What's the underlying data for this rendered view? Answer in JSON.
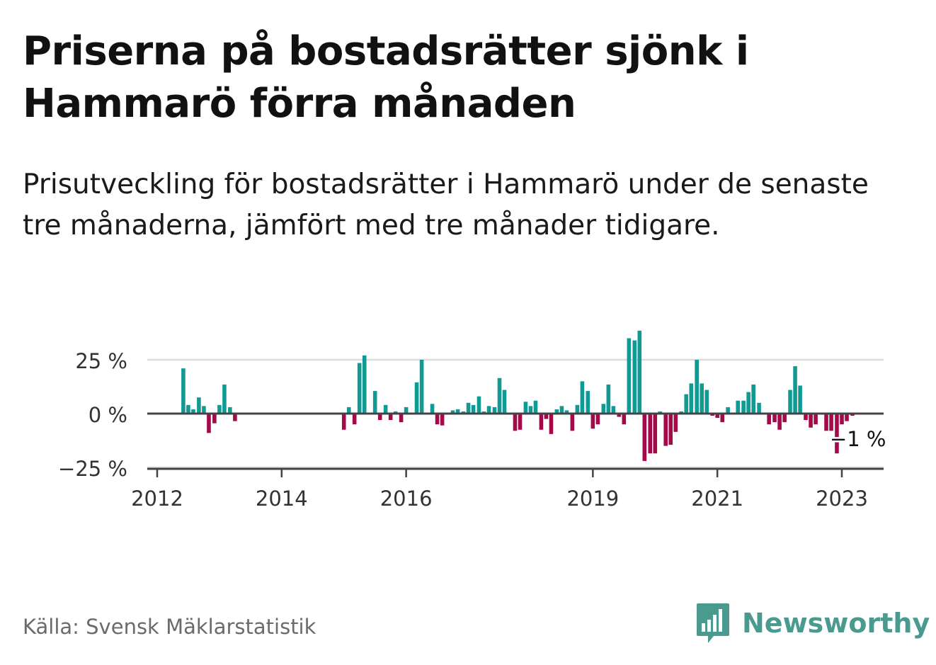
{
  "title": "Priserna på bostadsrätter sjönk i Hammarö förra månaden",
  "subtitle": "Prisutveckling för bostadsrätter i Hammarö under de senaste tre månaderna, jämfört med tre månader tidigare.",
  "source": "Källa: Svensk Mäklarstatistik",
  "brand": "Newsworthy",
  "colors": {
    "positive": "#119a94",
    "negative": "#a40a4a",
    "brand": "#4a9a90"
  },
  "icons": {
    "brand_logo": "bar-chart-icon"
  },
  "chart_data": {
    "type": "bar",
    "ylim": [
      -25,
      40
    ],
    "yticks": [
      {
        "value": 25,
        "label": "25 %"
      },
      {
        "value": 0,
        "label": "0 %"
      },
      {
        "value": -25,
        "label": "−25 %"
      }
    ],
    "xticks": [
      {
        "value": 2012.0,
        "label": "2012"
      },
      {
        "value": 2014.0,
        "label": "2014"
      },
      {
        "value": 2016.0,
        "label": "2016"
      },
      {
        "value": 2019.0,
        "label": "2019"
      },
      {
        "value": 2021.0,
        "label": "2021"
      },
      {
        "value": 2023.0,
        "label": "2023"
      }
    ],
    "last_label": "−1 %",
    "values": [
      {
        "x": 2012.42,
        "y": 21
      },
      {
        "x": 2012.5,
        "y": 4
      },
      {
        "x": 2012.58,
        "y": 2
      },
      {
        "x": 2012.67,
        "y": 7.5
      },
      {
        "x": 2012.75,
        "y": 3.5
      },
      {
        "x": 2012.83,
        "y": -9
      },
      {
        "x": 2012.92,
        "y": -4.5
      },
      {
        "x": 2013.0,
        "y": 4
      },
      {
        "x": 2013.08,
        "y": 13.5
      },
      {
        "x": 2013.17,
        "y": 3
      },
      {
        "x": 2013.25,
        "y": -3.5
      },
      {
        "x": 2015.0,
        "y": -7.5
      },
      {
        "x": 2015.08,
        "y": 3
      },
      {
        "x": 2015.17,
        "y": -5
      },
      {
        "x": 2015.25,
        "y": 23.5
      },
      {
        "x": 2015.33,
        "y": 27
      },
      {
        "x": 2015.5,
        "y": 10.5
      },
      {
        "x": 2015.58,
        "y": -3
      },
      {
        "x": 2015.67,
        "y": 4
      },
      {
        "x": 2015.75,
        "y": -3
      },
      {
        "x": 2015.83,
        "y": 1
      },
      {
        "x": 2015.92,
        "y": -4
      },
      {
        "x": 2016.0,
        "y": 3
      },
      {
        "x": 2016.08,
        "y": -0.5
      },
      {
        "x": 2016.17,
        "y": 14.5
      },
      {
        "x": 2016.25,
        "y": 25
      },
      {
        "x": 2016.42,
        "y": 4.5
      },
      {
        "x": 2016.5,
        "y": -5
      },
      {
        "x": 2016.58,
        "y": -5.5
      },
      {
        "x": 2016.67,
        "y": -0.5
      },
      {
        "x": 2016.75,
        "y": 1.5
      },
      {
        "x": 2016.83,
        "y": 2
      },
      {
        "x": 2016.92,
        "y": 1
      },
      {
        "x": 2017.0,
        "y": 5
      },
      {
        "x": 2017.08,
        "y": 4
      },
      {
        "x": 2017.17,
        "y": 8
      },
      {
        "x": 2017.25,
        "y": 1
      },
      {
        "x": 2017.33,
        "y": 3.5
      },
      {
        "x": 2017.42,
        "y": 3
      },
      {
        "x": 2017.5,
        "y": 16.5
      },
      {
        "x": 2017.58,
        "y": 11
      },
      {
        "x": 2017.67,
        "y": -0.5
      },
      {
        "x": 2017.75,
        "y": -8
      },
      {
        "x": 2017.83,
        "y": -7.5
      },
      {
        "x": 2017.92,
        "y": 5.5
      },
      {
        "x": 2018.0,
        "y": 3.5
      },
      {
        "x": 2018.08,
        "y": 6
      },
      {
        "x": 2018.17,
        "y": -7.5
      },
      {
        "x": 2018.25,
        "y": -2.5
      },
      {
        "x": 2018.33,
        "y": -9.5
      },
      {
        "x": 2018.42,
        "y": 2
      },
      {
        "x": 2018.5,
        "y": 3.5
      },
      {
        "x": 2018.58,
        "y": 1.5
      },
      {
        "x": 2018.67,
        "y": -8
      },
      {
        "x": 2018.75,
        "y": 4
      },
      {
        "x": 2018.83,
        "y": 15
      },
      {
        "x": 2018.92,
        "y": 10.5
      },
      {
        "x": 2019.0,
        "y": -7
      },
      {
        "x": 2019.08,
        "y": -5
      },
      {
        "x": 2019.17,
        "y": 4.5
      },
      {
        "x": 2019.25,
        "y": 13.5
      },
      {
        "x": 2019.33,
        "y": 3.5
      },
      {
        "x": 2019.42,
        "y": -1.5
      },
      {
        "x": 2019.5,
        "y": -5
      },
      {
        "x": 2019.58,
        "y": 35
      },
      {
        "x": 2019.67,
        "y": 34
      },
      {
        "x": 2019.75,
        "y": 38.5
      },
      {
        "x": 2019.83,
        "y": -22
      },
      {
        "x": 2019.92,
        "y": -18.5
      },
      {
        "x": 2020.0,
        "y": -18.5
      },
      {
        "x": 2020.08,
        "y": 1
      },
      {
        "x": 2020.17,
        "y": -15
      },
      {
        "x": 2020.25,
        "y": -14.5
      },
      {
        "x": 2020.33,
        "y": -8.5
      },
      {
        "x": 2020.42,
        "y": 1
      },
      {
        "x": 2020.5,
        "y": 9
      },
      {
        "x": 2020.58,
        "y": 14
      },
      {
        "x": 2020.67,
        "y": 25
      },
      {
        "x": 2020.75,
        "y": 14
      },
      {
        "x": 2020.83,
        "y": 11
      },
      {
        "x": 2020.92,
        "y": -1
      },
      {
        "x": 2021.0,
        "y": -2
      },
      {
        "x": 2021.08,
        "y": -4
      },
      {
        "x": 2021.17,
        "y": 3
      },
      {
        "x": 2021.25,
        "y": 0.5
      },
      {
        "x": 2021.33,
        "y": 6
      },
      {
        "x": 2021.42,
        "y": 6
      },
      {
        "x": 2021.5,
        "y": 10
      },
      {
        "x": 2021.58,
        "y": 13.5
      },
      {
        "x": 2021.67,
        "y": 5
      },
      {
        "x": 2021.75,
        "y": 0.5
      },
      {
        "x": 2021.83,
        "y": -5
      },
      {
        "x": 2021.92,
        "y": -4
      },
      {
        "x": 2022.0,
        "y": -7.5
      },
      {
        "x": 2022.08,
        "y": -4
      },
      {
        "x": 2022.17,
        "y": 11
      },
      {
        "x": 2022.25,
        "y": 22
      },
      {
        "x": 2022.33,
        "y": 13
      },
      {
        "x": 2022.42,
        "y": -3
      },
      {
        "x": 2022.5,
        "y": -6.5
      },
      {
        "x": 2022.58,
        "y": -5
      },
      {
        "x": 2022.67,
        "y": 0
      },
      {
        "x": 2022.75,
        "y": -8
      },
      {
        "x": 2022.83,
        "y": -8
      },
      {
        "x": 2022.92,
        "y": -18.5
      },
      {
        "x": 2023.0,
        "y": -5
      },
      {
        "x": 2023.08,
        "y": -3.5
      },
      {
        "x": 2023.17,
        "y": -1
      }
    ]
  }
}
